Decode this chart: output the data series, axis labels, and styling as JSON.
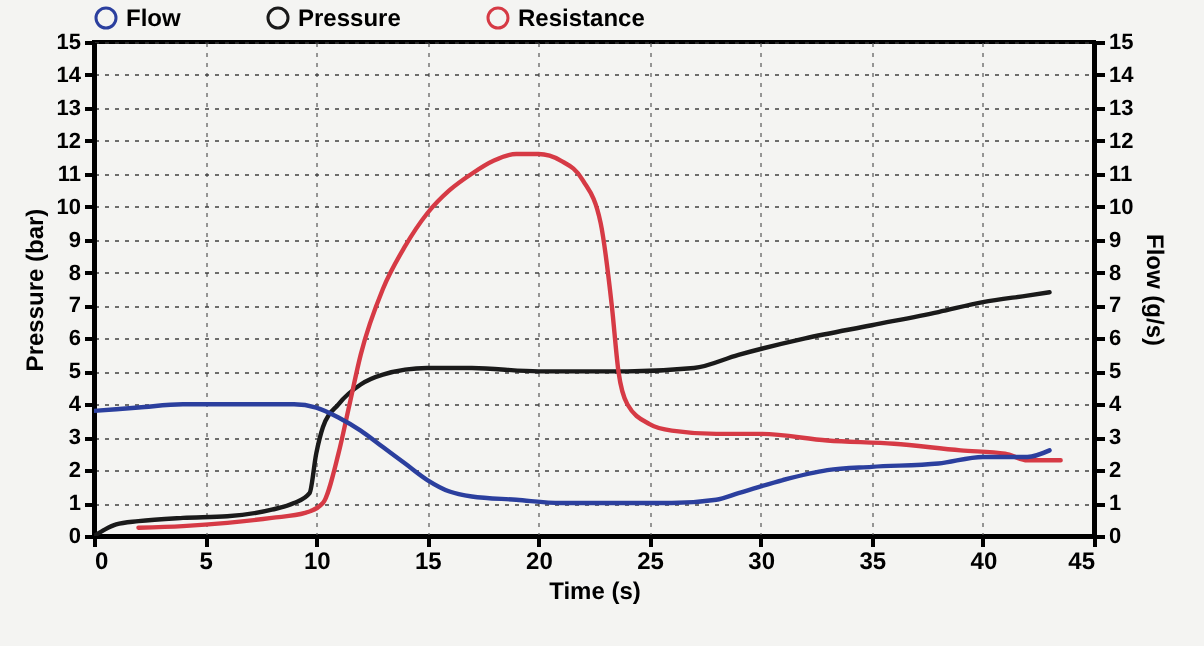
{
  "chart_data": {
    "type": "line",
    "xlabel": "Time (s)",
    "ylabel": "Pressure (bar)",
    "y2label": "Flow (g/s)",
    "xlim": [
      0,
      45
    ],
    "xticks": [
      0,
      5,
      10,
      15,
      20,
      25,
      30,
      35,
      40,
      45
    ],
    "ylim": [
      0,
      15
    ],
    "yticks": [
      0,
      1,
      2,
      3,
      4,
      5,
      6,
      7,
      8,
      9,
      10,
      11,
      12,
      13,
      14,
      15
    ],
    "y2lim": [
      0,
      15
    ],
    "y2ticks": [
      0,
      1,
      2,
      3,
      4,
      5,
      6,
      7,
      8,
      9,
      10,
      11,
      12,
      13,
      14,
      15
    ],
    "grid": true,
    "legend": "top",
    "series": [
      {
        "name": "Flow",
        "color": "#2b3f9e",
        "axis": "y2",
        "x": [
          0,
          2,
          4,
          7,
          9,
          10,
          11,
          12,
          13,
          14,
          15,
          16,
          17,
          19,
          21,
          24,
          26,
          28,
          29,
          31,
          33,
          35,
          38,
          40,
          42,
          43
        ],
        "values": [
          3.8,
          3.9,
          4.0,
          4.0,
          4.0,
          3.9,
          3.6,
          3.2,
          2.7,
          2.2,
          1.7,
          1.35,
          1.2,
          1.1,
          1.0,
          1.0,
          1.0,
          1.1,
          1.3,
          1.7,
          2.0,
          2.1,
          2.2,
          2.4,
          2.4,
          2.6
        ]
      },
      {
        "name": "Pressure",
        "color": "#1a1a1a",
        "x": [
          0,
          0.5,
          1,
          2,
          4,
          6,
          8,
          9,
          9.7,
          10,
          10.3,
          11,
          12,
          13,
          15,
          17,
          20,
          24,
          27,
          29,
          32,
          35,
          38,
          40,
          42,
          43
        ],
        "values": [
          0,
          0.2,
          0.35,
          0.45,
          0.55,
          0.6,
          0.8,
          1.0,
          1.3,
          2.5,
          3.3,
          4.0,
          4.6,
          4.9,
          5.1,
          5.1,
          5.0,
          5.0,
          5.1,
          5.5,
          6.0,
          6.4,
          6.8,
          7.1,
          7.3,
          7.4
        ]
      },
      {
        "name": "Resistance",
        "color": "#d63a45",
        "x": [
          2,
          4,
          6,
          8,
          9.5,
          10.3,
          11,
          11.5,
          12,
          13,
          14,
          15,
          16,
          17,
          18,
          19,
          20,
          21,
          22,
          22.8,
          23.3,
          23.6,
          24,
          25,
          26,
          28,
          30,
          33,
          36,
          39,
          41,
          42,
          43.5
        ],
        "values": [
          0.25,
          0.3,
          0.4,
          0.55,
          0.7,
          1.0,
          2.5,
          4,
          5.5,
          7.5,
          8.8,
          9.8,
          10.5,
          11.0,
          11.4,
          11.6,
          11.6,
          11.4,
          10.8,
          9.5,
          7,
          5,
          4.0,
          3.4,
          3.2,
          3.1,
          3.1,
          2.9,
          2.8,
          2.6,
          2.5,
          2.3,
          2.3
        ]
      }
    ]
  }
}
